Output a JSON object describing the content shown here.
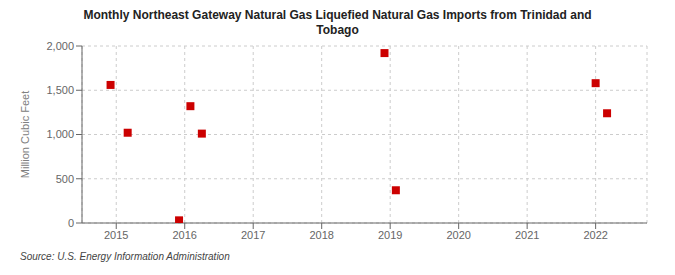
{
  "chart_data": {
    "type": "scatter",
    "title": "Monthly Northeast Gateway Natural Gas Liquefied Natural Gas Imports from Trinidad and\nTobago",
    "ylabel": "Million Cubic Feet",
    "annotation": "Source: U.S. Energy Information Administration",
    "x": [
      2014.917,
      2015.167,
      2015.917,
      2016.083,
      2016.25,
      2018.917,
      2019.083,
      2022.0,
      2022.167
    ],
    "values": [
      1560,
      1020,
      30,
      1320,
      1010,
      1920,
      370,
      1580,
      1240
    ],
    "color": "#cc0000",
    "marker": "square",
    "xlim": [
      2014.5,
      2022.75
    ],
    "xticks": [
      2015,
      2016,
      2017,
      2018,
      2019,
      2020,
      2021,
      2022
    ],
    "ylim": [
      0,
      2000
    ],
    "yticks": [
      0,
      500,
      {
        "value": 1000,
        "label": "1,000"
      },
      {
        "value": 1500,
        "label": "1,500"
      },
      {
        "value": 2000,
        "label": "2,000"
      }
    ],
    "grid": true
  }
}
